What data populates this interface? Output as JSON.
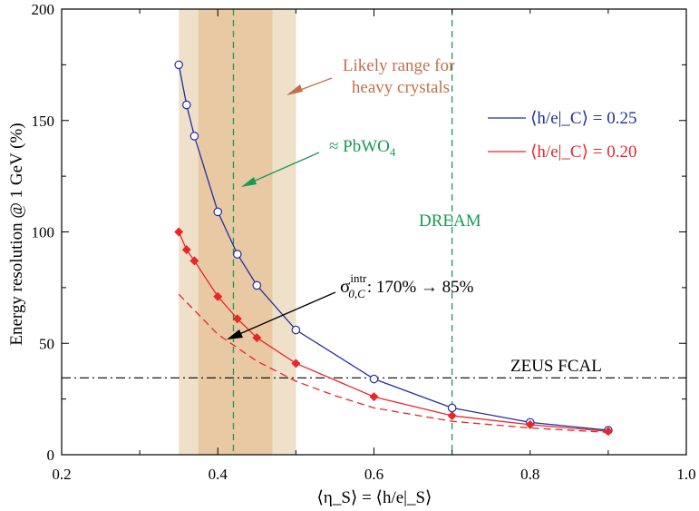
{
  "chart_data": {
    "type": "line",
    "title": "",
    "xlabel": "⟨η_S⟩ = ⟨h/e|_S⟩",
    "ylabel": "Energy resolution @ 1 GeV (%)",
    "xlim": [
      0.2,
      1.0
    ],
    "ylim": [
      0,
      200
    ],
    "xticks": [
      "0.2",
      "0.4",
      "0.6",
      "0.8",
      "1.0"
    ],
    "yticks": [
      "0",
      "50",
      "100",
      "150",
      "200"
    ],
    "grid": false,
    "legend_position": "right",
    "colors": {
      "blue": "#1f2fa0",
      "red": "#e8262a",
      "green": "#1a9a55",
      "black": "#000000",
      "band_light": "#efe0c9",
      "band_dark": "#e8c9a4",
      "annotation_brown": "#c0704f"
    },
    "bands": [
      {
        "x0": 0.35,
        "x1": 0.5,
        "color": "#efe0c9"
      },
      {
        "x0": 0.375,
        "x1": 0.47,
        "color": "#e8c9a4"
      }
    ],
    "vlines": [
      {
        "x": 0.42,
        "color": "#1a9a55",
        "style": "dashed"
      },
      {
        "x": 0.7,
        "color": "#1a9a55",
        "style": "dashed"
      }
    ],
    "hlines": [
      {
        "y": 34.5,
        "color": "#000000",
        "style": "dashdot",
        "label": "ZEUS FCAL"
      }
    ],
    "series": [
      {
        "name": "⟨h/e|_C⟩ = 0.25",
        "color": "#1f2fa0",
        "marker": "open-circle",
        "x": [
          0.35,
          0.36,
          0.37,
          0.4,
          0.425,
          0.45,
          0.5,
          0.6,
          0.7,
          0.8,
          0.9
        ],
        "y": [
          175,
          157,
          143,
          109,
          90,
          76,
          56,
          34,
          21,
          14.5,
          11
        ]
      },
      {
        "name": "⟨h/e|_C⟩ = 0.20",
        "color": "#e8262a",
        "marker": "diamond",
        "x": [
          0.35,
          0.36,
          0.37,
          0.4,
          0.425,
          0.45,
          0.5,
          0.6,
          0.7,
          0.8,
          0.9
        ],
        "y": [
          100,
          92,
          87,
          71,
          61,
          52.5,
          41,
          26,
          17.5,
          13.5,
          10.5
        ]
      },
      {
        "name": "",
        "color": "#e8262a",
        "style": "dashed",
        "x": [
          0.35,
          0.4,
          0.45,
          0.5,
          0.55,
          0.6,
          0.7,
          0.8,
          0.9
        ],
        "y": [
          72,
          54,
          42,
          33,
          26.5,
          21,
          15,
          12,
          10
        ]
      }
    ],
    "annotations": {
      "likely_range": [
        "Likely range for",
        "heavy crystals"
      ],
      "pbwo4": "≈ PbWO",
      "pbwo4_sub": "4",
      "dream": "DREAM",
      "zeus": "ZEUS FCAL",
      "sigma_symbol": "σ",
      "sigma_sup": "intr",
      "sigma_sub": "0,C",
      "sigma_values": ": 170% → 85%"
    }
  }
}
